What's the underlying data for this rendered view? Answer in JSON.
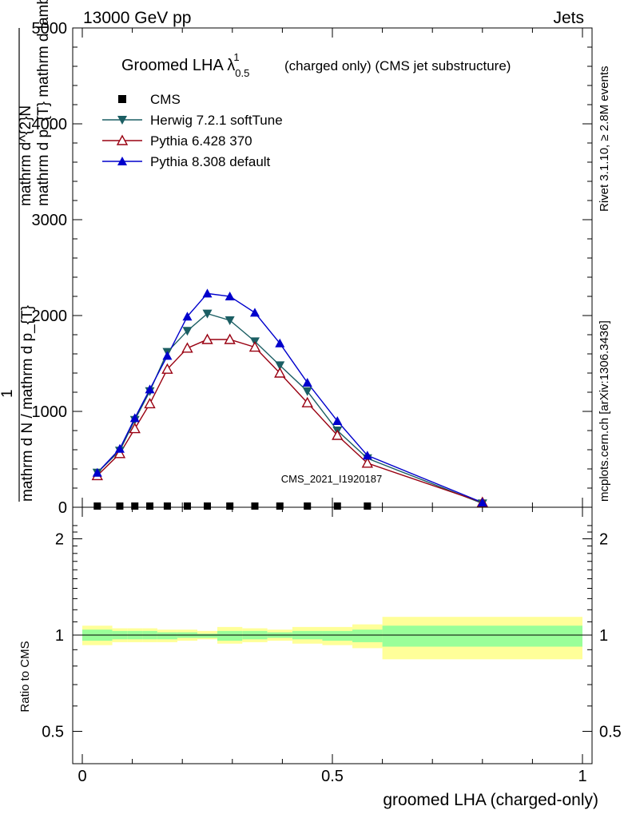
{
  "header": {
    "left": "13000 GeV pp",
    "right": "Jets"
  },
  "side": {
    "rivet": "Rivet 3.1.10, ≥ 2.8M events",
    "mcplots": "mcplots.cern.ch [arXiv:1306.3436]"
  },
  "watermark": "CMS_2021_I1920187",
  "chart_data": [
    {
      "type": "line",
      "title": "Groomed LHA λ",
      "title_sup": "1",
      "title_sub": "0.5",
      "title_suffix": "(charged only) (CMS jet substructure)",
      "ylabel_numerator": "mathrm d^{2}N",
      "ylabel_denominator": "mathrm d p_{T} mathrm d lambda",
      "ylabel_prefix_num": "1",
      "ylabel_prefix_den": "mathrm d N / mathrm d p_{T}",
      "ylim": [
        0,
        5000
      ],
      "yticks": [
        "0",
        "1000",
        "2000",
        "3000",
        "4000",
        "5000"
      ],
      "xlim": [
        0,
        1
      ],
      "x": [
        0.03,
        0.075,
        0.105,
        0.135,
        0.17,
        0.21,
        0.25,
        0.295,
        0.345,
        0.395,
        0.45,
        0.51,
        0.57,
        0.8
      ],
      "series": [
        {
          "name": "CMS",
          "color": "#000000",
          "marker": "square",
          "values": [
            0,
            0,
            0,
            0,
            0,
            0,
            0,
            0,
            0,
            0,
            0,
            0,
            0,
            null
          ]
        },
        {
          "name": "Herwig 7.2.1 softTune",
          "color": "#1b5e63",
          "marker": "triangle-down",
          "values": [
            360,
            590,
            910,
            1210,
            1620,
            1840,
            2020,
            1950,
            1730,
            1480,
            1210,
            800,
            510,
            40
          ]
        },
        {
          "name": "Pythia 6.428 370",
          "color": "#990011",
          "marker": "triangle-open",
          "values": [
            330,
            560,
            820,
            1080,
            1440,
            1660,
            1750,
            1750,
            1670,
            1400,
            1090,
            750,
            460,
            50
          ]
        },
        {
          "name": "Pythia 8.308 default",
          "color": "#0000cc",
          "marker": "triangle-up",
          "values": [
            360,
            610,
            930,
            1230,
            1580,
            1990,
            2230,
            2200,
            2030,
            1710,
            1300,
            900,
            540,
            50
          ]
        }
      ]
    },
    {
      "type": "area",
      "ylabel": "Ratio to CMS",
      "xlabel": "groomed LHA (charged-only)",
      "ylim": [
        0.4,
        2.3
      ],
      "yticks": [
        "0.5",
        "1",
        "2"
      ],
      "xticks": [
        "0",
        "0.5",
        "1"
      ],
      "xlim": [
        0,
        1
      ],
      "bin_edges": [
        0,
        0.06,
        0.09,
        0.12,
        0.15,
        0.19,
        0.23,
        0.27,
        0.32,
        0.37,
        0.42,
        0.48,
        0.54,
        0.6,
        1.0
      ],
      "band_inner": [
        [
          0.96,
          1.04
        ],
        [
          0.97,
          1.03
        ],
        [
          0.97,
          1.03
        ],
        [
          0.97,
          1.03
        ],
        [
          0.97,
          1.02
        ],
        [
          0.98,
          1.02
        ],
        [
          0.98,
          1.01
        ],
        [
          0.96,
          1.03
        ],
        [
          0.97,
          1.03
        ],
        [
          0.98,
          1.02
        ],
        [
          0.97,
          1.03
        ],
        [
          0.96,
          1.03
        ],
        [
          0.95,
          1.04
        ],
        [
          0.92,
          1.07
        ]
      ],
      "band_outer": [
        [
          0.93,
          1.07
        ],
        [
          0.95,
          1.05
        ],
        [
          0.95,
          1.05
        ],
        [
          0.95,
          1.05
        ],
        [
          0.95,
          1.04
        ],
        [
          0.96,
          1.04
        ],
        [
          0.97,
          1.03
        ],
        [
          0.94,
          1.06
        ],
        [
          0.95,
          1.05
        ],
        [
          0.96,
          1.04
        ],
        [
          0.94,
          1.06
        ],
        [
          0.93,
          1.06
        ],
        [
          0.91,
          1.08
        ],
        [
          0.84,
          1.14
        ]
      ],
      "band_colors": {
        "inner": "#99ff99",
        "outer": "#ffff99"
      }
    }
  ]
}
